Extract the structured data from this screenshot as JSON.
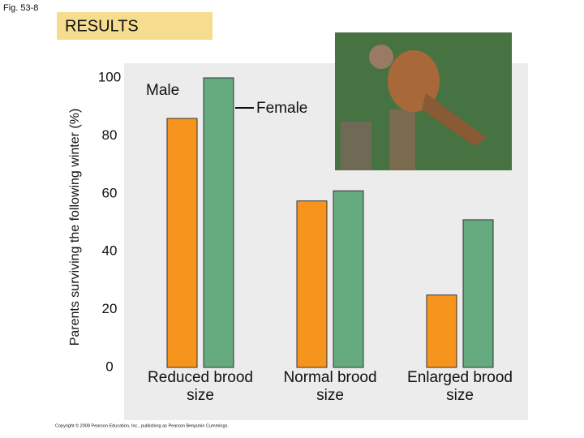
{
  "figure_label": "Fig. 53-8",
  "banner": "RESULTS",
  "copyright": "Copyright © 2008 Pearson Education, Inc., publishing as Pearson Benjamin Cummings.",
  "chart_data": {
    "type": "bar",
    "ylabel": "Parents surviving the following winter (%)",
    "categories": [
      "Reduced brood size",
      "Normal brood size",
      "Enlarged brood size"
    ],
    "series": [
      {
        "name": "Male",
        "color": "#f7941d",
        "values": [
          86,
          57.5,
          25
        ]
      },
      {
        "name": "Female",
        "color": "#66aa80",
        "values": [
          100,
          61,
          51
        ]
      }
    ],
    "ylim": [
      0,
      100
    ],
    "yticks": [
      0,
      20,
      40,
      60,
      80,
      100
    ],
    "grid": false
  }
}
